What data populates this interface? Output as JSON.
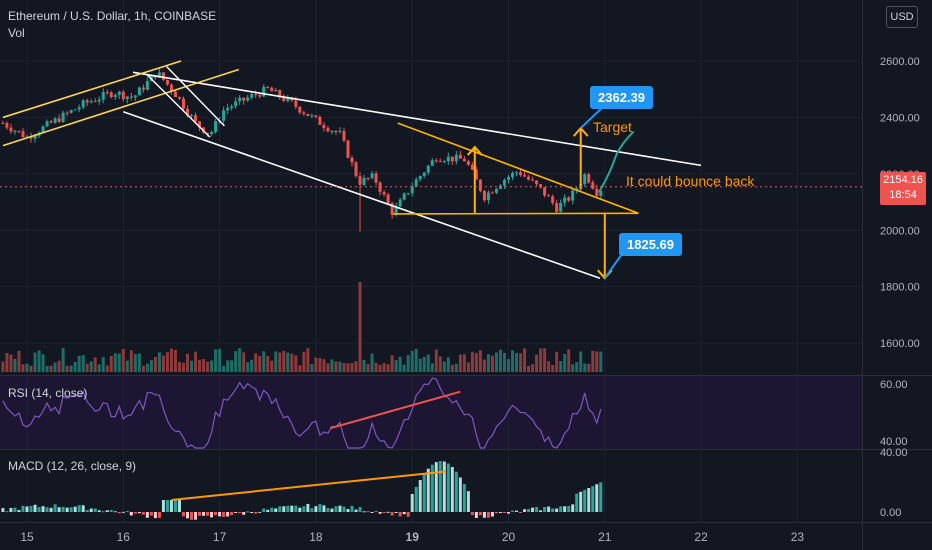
{
  "header": {
    "title": "Ethereum / U.S. Dollar, 1h, COINBASE",
    "volume_label": "Vol",
    "currency_button": "USD"
  },
  "price_tag": {
    "price": "2154.16",
    "countdown": "18:54",
    "color": "#ef5350"
  },
  "annotations": {
    "upper_target": "2362.39",
    "lower_target": "1825.69",
    "target_label": "Target",
    "bounce_label": "It could bounce back"
  },
  "colors": {
    "up": "#26a69a",
    "down": "#ef5350",
    "background": "#131722",
    "trend_line": "#ffffff",
    "pattern": "#ffb300",
    "rsi": "#7e57c2",
    "callout": "#2196f3"
  },
  "chart_data": [
    {
      "type": "candlestick",
      "title": "Ethereum / U.S. Dollar, 1h, COINBASE",
      "x_ticks": [
        "15",
        "16",
        "17",
        "18",
        "19",
        "20",
        "21",
        "22",
        "23"
      ],
      "y_ticks": [
        "1600.00",
        "1800.00",
        "2000.00",
        "2200.00",
        "2400.00",
        "2600.00"
      ],
      "ylim": [
        1540,
        2710
      ],
      "path_points": [
        {
          "t": 14.75,
          "p": 2380
        },
        {
          "t": 15.0,
          "p": 2330
        },
        {
          "t": 15.3,
          "p": 2390
        },
        {
          "t": 15.6,
          "p": 2450
        },
        {
          "t": 15.9,
          "p": 2490
        },
        {
          "t": 16.1,
          "p": 2470
        },
        {
          "t": 16.35,
          "p": 2560
        },
        {
          "t": 16.55,
          "p": 2480
        },
        {
          "t": 16.75,
          "p": 2380
        },
        {
          "t": 16.9,
          "p": 2340
        },
        {
          "t": 17.05,
          "p": 2430
        },
        {
          "t": 17.3,
          "p": 2470
        },
        {
          "t": 17.5,
          "p": 2500
        },
        {
          "t": 17.75,
          "p": 2450
        },
        {
          "t": 18.0,
          "p": 2390
        },
        {
          "t": 18.25,
          "p": 2340
        },
        {
          "t": 18.45,
          "p": 2170
        },
        {
          "t": 18.6,
          "p": 2190
        },
        {
          "t": 18.8,
          "p": 2060
        },
        {
          "t": 19.0,
          "p": 2160
        },
        {
          "t": 19.25,
          "p": 2260
        },
        {
          "t": 19.55,
          "p": 2250
        },
        {
          "t": 19.75,
          "p": 2120
        },
        {
          "t": 19.95,
          "p": 2180
        },
        {
          "t": 20.1,
          "p": 2210
        },
        {
          "t": 20.35,
          "p": 2140
        },
        {
          "t": 20.5,
          "p": 2080
        },
        {
          "t": 20.65,
          "p": 2120
        },
        {
          "t": 20.8,
          "p": 2200
        },
        {
          "t": 20.92,
          "p": 2135
        },
        {
          "t": 20.98,
          "p": 2154
        }
      ],
      "drawn_lines": [
        {
          "name": "main-descending-resistance",
          "from": {
            "t": 16.1,
            "p": 2560
          },
          "to": {
            "t": 22.0,
            "p": 2230
          }
        },
        {
          "name": "main-descending-support",
          "from": {
            "t": 16.0,
            "p": 2420
          },
          "to": {
            "t": 20.95,
            "p": 1830
          }
        },
        {
          "name": "triangle-upper",
          "from": {
            "t": 18.85,
            "p": 2380
          },
          "to": {
            "t": 21.35,
            "p": 2060
          }
        },
        {
          "name": "triangle-base",
          "from": {
            "t": 18.8,
            "p": 2058
          },
          "to": {
            "t": 21.35,
            "p": 2060
          }
        },
        {
          "name": "channel-upper",
          "from": {
            "t": 14.75,
            "p": 2400
          },
          "to": {
            "t": 16.6,
            "p": 2600
          }
        },
        {
          "name": "channel-lower",
          "from": {
            "t": 14.75,
            "p": 2300
          },
          "to": {
            "t": 17.2,
            "p": 2570
          }
        }
      ]
    },
    {
      "type": "bar",
      "title": "Vol",
      "description": "volume histogram under price, spike near 18.45"
    },
    {
      "type": "line",
      "title": "RSI (14, close)",
      "y_ticks": [
        "40.00",
        "60.00"
      ],
      "ylim": [
        35,
        63
      ]
    },
    {
      "type": "bar",
      "title": "MACD (12, 26, close, 9)",
      "y_ticks": [
        "0.00",
        "40.00"
      ],
      "ylim": [
        -10,
        42
      ]
    }
  ]
}
